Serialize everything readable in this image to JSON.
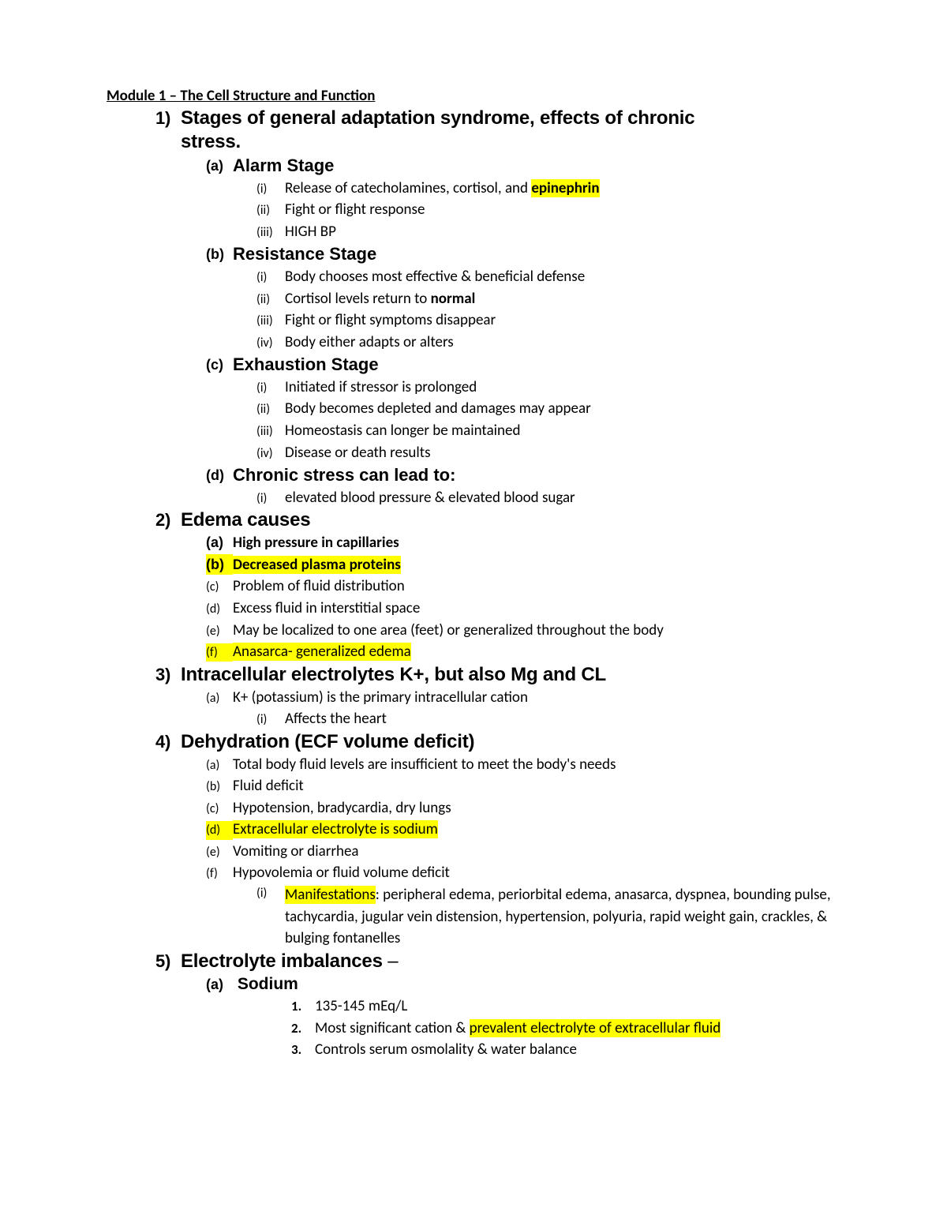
{
  "colors": {
    "highlight": "#ffff00",
    "text": "#000000",
    "bg": "#ffffff"
  },
  "title": "Module 1 – The Cell Structure and Function ",
  "s1": {
    "num": "1)",
    "title1": "Stages of general adaptation syndrome, effects of chronic",
    "title2": "stress.",
    "a": {
      "lbl": "(a)",
      "title": "Alarm Stage",
      "i": {
        "lbl": "(i)",
        "pre": "Release of catecholamines, cortisol, and ",
        "hl": "epinephrin"
      },
      "ii": {
        "lbl": "(ii)",
        "txt": "Fight or flight response"
      },
      "iii": {
        "lbl": "(iii)",
        "txt": "HIGH BP"
      }
    },
    "b": {
      "lbl": "(b)",
      "title": "Resistance Stage",
      "i": {
        "lbl": "(i)",
        "txt": "Body chooses most effective & beneficial defense"
      },
      "ii": {
        "lbl": "(ii)",
        "pre": "Cortisol levels return to ",
        "bold": "normal"
      },
      "iii": {
        "lbl": "(iii)",
        "txt": "Fight or flight symptoms disappear"
      },
      "iv": {
        "lbl": "(iv)",
        "txt": "Body either adapts or alters"
      }
    },
    "c": {
      "lbl": "(c)",
      "title": "Exhaustion Stage",
      "i": {
        "lbl": "(i)",
        "txt": "Initiated if stressor is prolonged"
      },
      "ii": {
        "lbl": "(ii)",
        "txt": "Body becomes depleted and damages may appear"
      },
      "iii": {
        "lbl": "(iii)",
        "txt": "Homeostasis can longer be maintained"
      },
      "iv": {
        "lbl": "(iv)",
        "txt": "Disease or death results"
      }
    },
    "d": {
      "lbl": "(d)",
      "title": "Chronic stress can lead to:",
      "i": {
        "lbl": "(i)",
        "txt": "elevated blood pressure & elevated blood sugar"
      }
    }
  },
  "s2": {
    "num": "2)",
    "title": "Edema causes",
    "a": {
      "lbl": "(a)",
      "txt": "High pressure in capillaries"
    },
    "b": {
      "lbl": "(b)",
      "txt": "Decreased plasma proteins"
    },
    "c": {
      "lbl": "(c)",
      "txt": "Problem of fluid distribution"
    },
    "d": {
      "lbl": "(d)",
      "txt": "Excess fluid in interstitial space"
    },
    "e": {
      "lbl": "(e)",
      "txt": "May be localized to one area (feet) or generalized throughout the body"
    },
    "f": {
      "lbl": "(f)",
      "txt": "Anasarca- generalized edema"
    }
  },
  "s3": {
    "num": "3)",
    "title": "Intracellular electrolytes K+, but also Mg and CL",
    "a": {
      "lbl": "(a)",
      "txt": "K+ (potassium) is the primary intracellular cation",
      "i": {
        "lbl": "(i)",
        "txt": "Affects the heart"
      }
    }
  },
  "s4": {
    "num": "4)",
    "title": "Dehydration (ECF volume deficit)",
    "a": {
      "lbl": "(a)",
      "txt": "Total body fluid levels are insufficient to meet the body's needs"
    },
    "b": {
      "lbl": "(b)",
      "txt": "Fluid deficit"
    },
    "c": {
      "lbl": "(c)",
      "txt": "Hypotension, bradycardia, dry lungs"
    },
    "d": {
      "lbl": "(d)",
      "txt": "Extracellular electrolyte is sodium"
    },
    "e": {
      "lbl": "(e)",
      "txt": "Vomiting or diarrhea"
    },
    "f": {
      "lbl": "(f)",
      "txt": "Hypovolemia or fluid volume deficit",
      "i": {
        "lbl": "(i)",
        "hl": "Manifestations",
        "post": ": peripheral edema, periorbital edema, anasarca, dyspnea, bounding pulse, tachycardia, jugular vein distension, hypertension, polyuria, rapid weight gain, crackles, & bulging fontanelles"
      }
    }
  },
  "s5": {
    "num": "5)",
    "title": "Electrolyte imbalances",
    "suffix": " –",
    "a": {
      "lbl": "(a)",
      "title": " Sodium",
      "i": {
        "lbl": "1.",
        "txt": "135-145 mEq/L"
      },
      "ii": {
        "lbl": "2.",
        "pre": "Most significant cation & ",
        "hl": "prevalent electrolyte of extracellular fluid"
      },
      "iii": {
        "lbl": "3.",
        "txt": "Controls serum osmolality & water balance"
      }
    }
  }
}
